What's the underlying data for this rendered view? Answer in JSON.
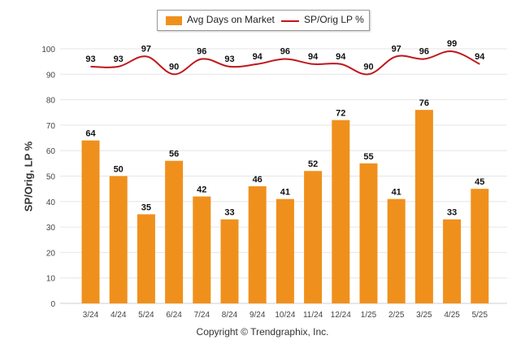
{
  "legend": {
    "bar_label": "Avg Days on Market",
    "line_label": "SP/Orig LP %"
  },
  "footer": "Copyright © Trendgraphix, Inc.",
  "colors": {
    "bar": "#F0901C",
    "line": "#C0171B",
    "grid": "#e6e6e6",
    "axis_text": "#444444"
  },
  "chart_data": {
    "type": "bar",
    "title": "",
    "xlabel": "",
    "ylabel": "SP/Orig, LP %",
    "ylim": [
      0,
      100
    ],
    "yticks": [
      0,
      10,
      20,
      30,
      40,
      50,
      60,
      70,
      80,
      90,
      100
    ],
    "categories": [
      "3/24",
      "4/24",
      "5/24",
      "6/24",
      "7/24",
      "8/24",
      "9/24",
      "10/24",
      "11/24",
      "12/24",
      "1/25",
      "2/25",
      "3/25",
      "4/25",
      "5/25"
    ],
    "grid": true,
    "legend_position": "top-center",
    "series": [
      {
        "name": "Avg Days on Market",
        "type": "bar",
        "values": [
          64,
          50,
          35,
          56,
          42,
          33,
          46,
          41,
          52,
          72,
          55,
          41,
          76,
          33,
          45
        ]
      },
      {
        "name": "SP/Orig LP %",
        "type": "line",
        "values": [
          93,
          93,
          97,
          90,
          96,
          93,
          94,
          96,
          94,
          94,
          90,
          97,
          96,
          99,
          94
        ]
      }
    ]
  }
}
